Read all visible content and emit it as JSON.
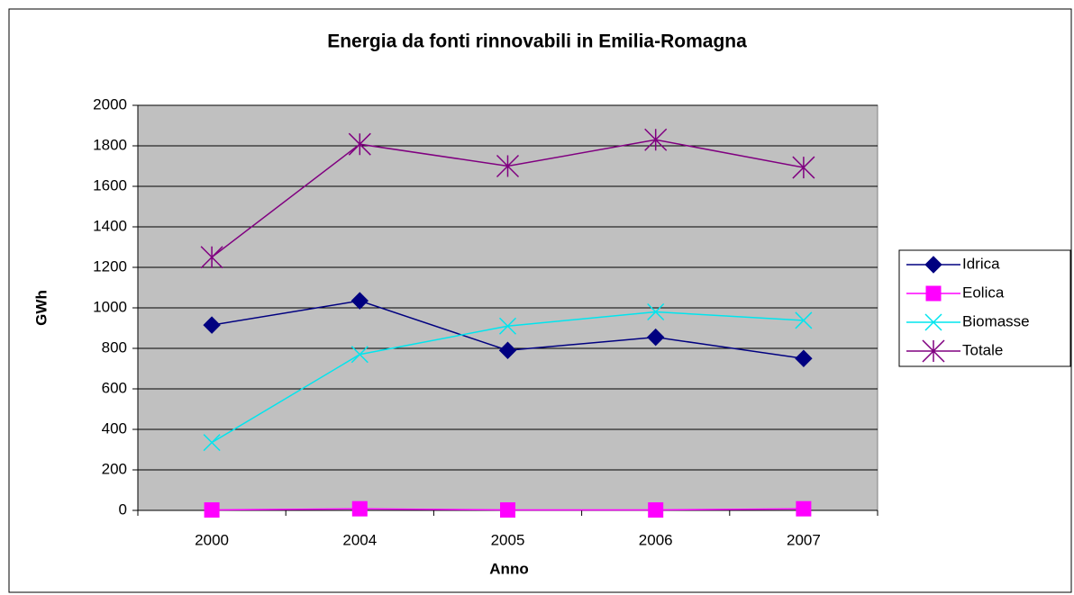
{
  "chart_data": {
    "type": "line",
    "title": "Energia da fonti rinnovabili in Emilia-Romagna",
    "x_label": "Anno",
    "y_label": "GWh",
    "categories": [
      "2000",
      "2004",
      "2005",
      "2006",
      "2007"
    ],
    "series": [
      {
        "name": "Idrica",
        "color": "#000080",
        "marker": "diamond",
        "values": [
          915,
          1035,
          790,
          855,
          750
        ]
      },
      {
        "name": "Eolica",
        "color": "#ff00ff",
        "marker": "square",
        "values": [
          2,
          8,
          2,
          2,
          8
        ]
      },
      {
        "name": "Biomasse",
        "color": "#00e5ee",
        "marker": "x",
        "values": [
          335,
          770,
          910,
          980,
          938
        ]
      },
      {
        "name": "Totale",
        "color": "#800080",
        "marker": "star",
        "values": [
          1250,
          1808,
          1700,
          1830,
          1693
        ]
      }
    ],
    "ylim": [
      0,
      2000
    ],
    "yticks": [
      0,
      200,
      400,
      600,
      800,
      1000,
      1200,
      1400,
      1600,
      1800,
      2000
    ],
    "grid": true,
    "plot_background": "#c0c0c0",
    "legend": "right"
  }
}
